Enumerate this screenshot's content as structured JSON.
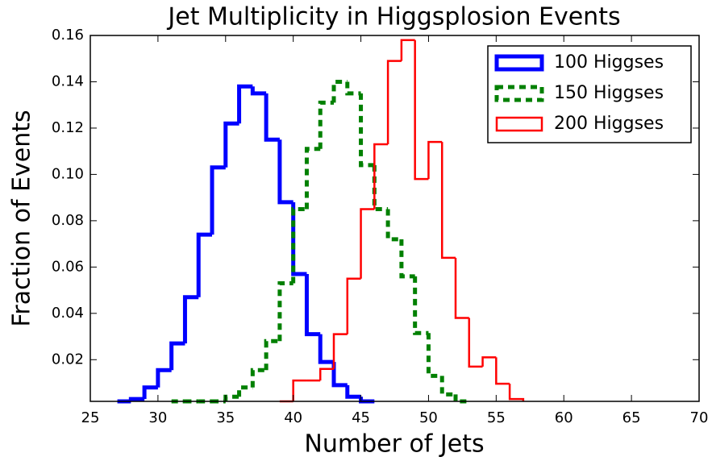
{
  "chart_data": {
    "type": "histogram",
    "title": "Jet Multiplicity in Higgsplosion Events",
    "xlabel": "Number of Jets",
    "ylabel": "Fraction of Events",
    "xlim": [
      25,
      70
    ],
    "ylim": [
      0.002,
      0.16
    ],
    "xticks": [
      25,
      30,
      35,
      40,
      45,
      50,
      55,
      60,
      65,
      70
    ],
    "yticks": [
      0.02,
      0.04,
      0.06,
      0.08,
      {
        "value": 0.1,
        "label": "0.10"
      },
      0.12,
      0.14,
      0.16
    ],
    "grid": false,
    "legend": "upper right",
    "series": [
      {
        "name": "100 Higgses",
        "color": "#0000ff",
        "linestyle": "solid",
        "linewidth": 5,
        "bins": [
          27,
          28,
          29,
          30,
          31,
          32,
          33,
          34,
          35,
          36,
          37,
          38,
          39,
          40,
          41,
          42,
          43,
          44,
          45,
          46
        ],
        "values": [
          0.002,
          0.003,
          0.008,
          0.0155,
          0.027,
          0.047,
          0.074,
          0.103,
          0.122,
          0.138,
          0.135,
          0.115,
          0.088,
          0.057,
          0.031,
          0.019,
          0.009,
          0.004,
          0.002
        ]
      },
      {
        "name": "150 Higgses",
        "color": "#008000",
        "linestyle": "dashed",
        "linewidth": 5,
        "bins": [
          31,
          32,
          33,
          34,
          35,
          36,
          37,
          38,
          39,
          40,
          41,
          42,
          43,
          44,
          45,
          46,
          47,
          48,
          49,
          50,
          51,
          52,
          53
        ],
        "values": [
          0.002,
          0.002,
          0.002,
          0.002,
          0.004,
          0.008,
          0.0155,
          0.028,
          0.053,
          0.085,
          0.111,
          0.131,
          0.14,
          0.135,
          0.104,
          0.085,
          0.072,
          0.056,
          0.0315,
          0.013,
          0.005,
          0.002
        ]
      },
      {
        "name": "200 Higgses",
        "color": "#ff0000",
        "linestyle": "solid",
        "linewidth": 2.5,
        "bins": [
          39,
          40,
          41,
          42,
          43,
          44,
          45,
          46,
          47,
          48,
          49,
          50,
          51,
          52,
          53,
          54,
          55,
          56,
          57
        ],
        "values": [
          0.002,
          0.011,
          0.011,
          0.016,
          0.031,
          0.055,
          0.085,
          0.113,
          0.149,
          0.158,
          0.098,
          0.114,
          0.064,
          0.038,
          0.017,
          0.021,
          0.0096,
          0.003
        ]
      }
    ]
  }
}
